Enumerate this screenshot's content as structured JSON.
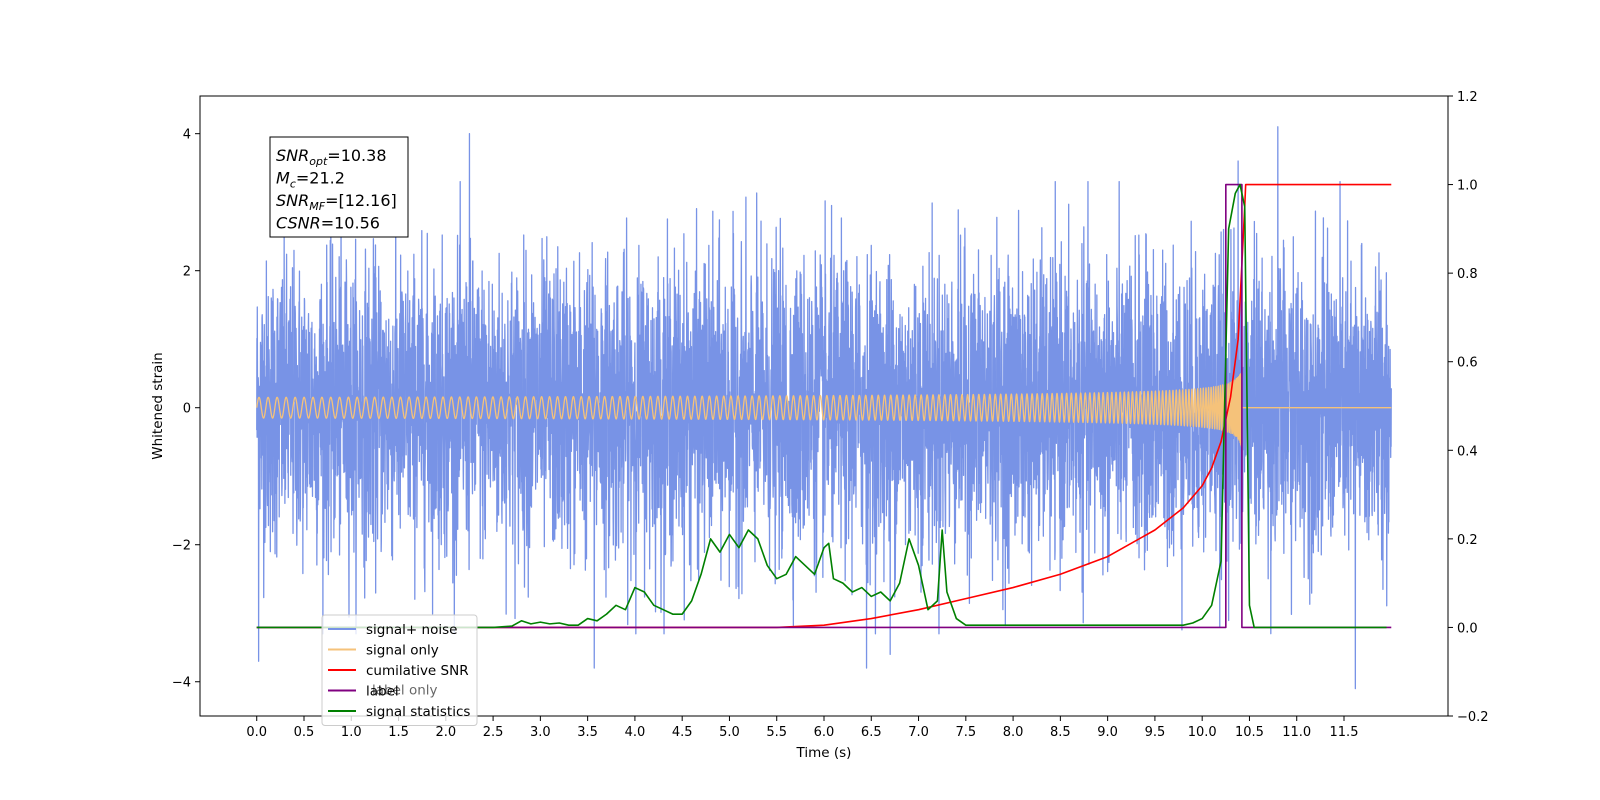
{
  "chart_data": {
    "type": "line",
    "xlabel": "Time (s)",
    "ylabel": "Whitened strain",
    "xlim": [
      -0.6,
      12.6
    ],
    "ylim": [
      -4.5,
      4.55
    ],
    "y2lim": [
      -0.2,
      1.2
    ],
    "xticks": [
      0.0,
      0.5,
      1.0,
      1.5,
      2.0,
      2.5,
      3.0,
      3.5,
      4.0,
      4.5,
      5.0,
      5.5,
      6.0,
      6.5,
      7.0,
      7.5,
      8.0,
      8.5,
      9.0,
      9.5,
      10.0,
      10.5,
      11.0,
      11.5
    ],
    "xtick_labels": [
      "0.0",
      "0.5",
      "1.0",
      "1.5",
      "2.0",
      "2.5",
      "3.0",
      "3.5",
      "4.0",
      "4.5",
      "5.0",
      "5.5",
      "6.0",
      "6.5",
      "7.0",
      "7.5",
      "8.0",
      "8.5",
      "9.0",
      "9.5",
      "10.0",
      "10.5",
      "11.0",
      "11.5"
    ],
    "yticks": [
      -4,
      -2,
      0,
      2,
      4
    ],
    "ytick_labels": [
      "−4",
      "−2",
      "0",
      "2",
      "4"
    ],
    "y2ticks": [
      -0.2,
      0.0,
      0.2,
      0.4,
      0.6,
      0.8,
      1.0,
      1.2
    ],
    "y2tick_labels": [
      "−0.2",
      "0.0",
      "0.2",
      "0.4",
      "0.6",
      "0.8",
      "1.0",
      "1.2"
    ],
    "annotation": {
      "lines": [
        {
          "main": "SNR",
          "sub": "opt",
          "rest": "=10.38"
        },
        {
          "main": "M",
          "sub": "c",
          "rest": "=21.2"
        },
        {
          "main": "SNR",
          "sub": "MF",
          "rest": "=[12.16]"
        },
        {
          "main": "CSNR",
          "sub": "",
          "rest": "=10.56"
        }
      ]
    },
    "legend": {
      "placement": "lower-left",
      "entries": [
        {
          "label": "signal+ noise",
          "color": "#7893e6"
        },
        {
          "label": "signal only",
          "color": "#f5c27a"
        },
        {
          "label": "cumilative SNR",
          "color": "#ff0000"
        },
        {
          "label": "label",
          "color": "#800080"
        },
        {
          "label": "signal statistics",
          "color": "#008000"
        }
      ],
      "hidden_text": "label only"
    },
    "series": [
      {
        "name": "signal+ noise",
        "axis": "left",
        "color": "#7893e6",
        "kind": "noise_band",
        "x_range": [
          0.0,
          12.0
        ],
        "typical_amplitude": 2.2,
        "extreme_values": [
          {
            "x": 0.02,
            "y": -3.7
          },
          {
            "x": 2.25,
            "y": 4.0
          },
          {
            "x": 3.57,
            "y": -3.8
          },
          {
            "x": 6.45,
            "y": -3.8
          },
          {
            "x": 6.7,
            "y": -3.6
          },
          {
            "x": 10.38,
            "y": 3.6
          },
          {
            "x": 10.8,
            "y": 4.1
          },
          {
            "x": 11.62,
            "y": -4.1
          }
        ]
      },
      {
        "name": "signal only",
        "axis": "left",
        "color": "#f5c27a",
        "kind": "chirp",
        "x_range": [
          0.0,
          12.0
        ],
        "merger_time": 10.42,
        "peak_amplitude": 0.7
      },
      {
        "name": "cumilative SNR",
        "axis": "right",
        "color": "#ff0000",
        "x": [
          0.0,
          5.5,
          6.0,
          6.5,
          7.0,
          7.5,
          8.0,
          8.5,
          9.0,
          9.5,
          9.8,
          10.0,
          10.1,
          10.2,
          10.3,
          10.38,
          10.45,
          10.46,
          11.0,
          11.5,
          12.0
        ],
        "y": [
          0.0,
          0.0,
          0.005,
          0.02,
          0.04,
          0.065,
          0.09,
          0.12,
          0.16,
          0.22,
          0.27,
          0.32,
          0.36,
          0.42,
          0.52,
          0.65,
          0.95,
          1.0,
          1.0,
          1.0,
          1.0
        ]
      },
      {
        "name": "label",
        "axis": "right",
        "color": "#800080",
        "x": [
          0.0,
          10.25,
          10.25,
          10.42,
          10.42,
          12.0
        ],
        "y": [
          0.0,
          0.0,
          1.0,
          1.0,
          0.0,
          0.0
        ]
      },
      {
        "name": "signal statistics",
        "axis": "right",
        "color": "#008000",
        "x": [
          0.0,
          2.5,
          2.7,
          2.8,
          2.9,
          3.0,
          3.1,
          3.2,
          3.3,
          3.4,
          3.5,
          3.6,
          3.7,
          3.8,
          3.9,
          4.0,
          4.1,
          4.2,
          4.3,
          4.4,
          4.5,
          4.6,
          4.7,
          4.8,
          4.9,
          5.0,
          5.1,
          5.2,
          5.3,
          5.4,
          5.5,
          5.6,
          5.7,
          5.8,
          5.9,
          6.0,
          6.05,
          6.1,
          6.2,
          6.3,
          6.4,
          6.5,
          6.6,
          6.7,
          6.8,
          6.9,
          7.0,
          7.1,
          7.2,
          7.25,
          7.3,
          7.4,
          7.5,
          9.8,
          9.9,
          10.0,
          10.1,
          10.2,
          10.28,
          10.35,
          10.4,
          10.45,
          10.5,
          10.55,
          11.95
        ],
        "y": [
          0.0,
          0.0,
          0.003,
          0.015,
          0.008,
          0.012,
          0.008,
          0.01,
          0.005,
          0.005,
          0.02,
          0.015,
          0.03,
          0.05,
          0.04,
          0.09,
          0.08,
          0.05,
          0.04,
          0.03,
          0.03,
          0.06,
          0.12,
          0.2,
          0.17,
          0.21,
          0.18,
          0.22,
          0.2,
          0.14,
          0.11,
          0.12,
          0.16,
          0.14,
          0.12,
          0.18,
          0.19,
          0.11,
          0.1,
          0.08,
          0.09,
          0.07,
          0.08,
          0.06,
          0.1,
          0.2,
          0.14,
          0.04,
          0.06,
          0.22,
          0.08,
          0.02,
          0.005,
          0.005,
          0.01,
          0.02,
          0.05,
          0.15,
          0.9,
          0.98,
          1.0,
          0.95,
          0.05,
          0.0,
          0.0
        ]
      }
    ]
  }
}
